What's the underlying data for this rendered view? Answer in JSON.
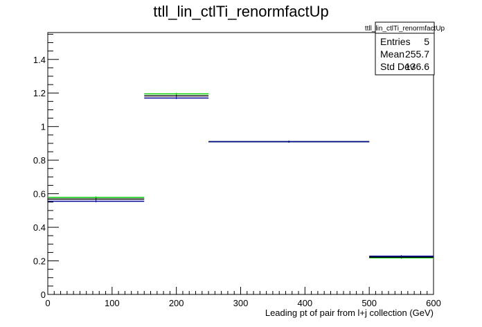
{
  "chart_data": {
    "type": "step",
    "title": "ttll_lin_ctlTi_renormfactUp",
    "xlabel": "Leading pt of pair from l+j collection (GeV)",
    "ylabel": "",
    "xlim": [
      0,
      600
    ],
    "ylim": [
      0,
      1.56
    ],
    "x_ticks": [
      0,
      100,
      200,
      300,
      400,
      500,
      600
    ],
    "y_ticks": [
      0,
      0.2,
      0.4,
      0.6,
      0.8,
      1,
      1.2,
      1.4
    ],
    "x_tick_labels": [
      "0",
      "100",
      "200",
      "300",
      "400",
      "500",
      "600"
    ],
    "y_tick_labels": [
      "0",
      "0.2",
      "0.4",
      "0.6",
      "0.8",
      "1",
      "1.2",
      "1.4"
    ],
    "bin_edges": [
      0,
      150,
      250,
      500,
      600
    ],
    "bin_centers": [
      75,
      200,
      375,
      550
    ],
    "series": [
      {
        "color": "#00cc00",
        "values": [
          0.578,
          1.195,
          0.91,
          0.218
        ]
      },
      {
        "color": "#000000",
        "values": [
          0.568,
          1.183,
          0.91,
          0.222
        ]
      },
      {
        "color": "#000099",
        "values": [
          0.555,
          1.17,
          0.91,
          0.228
        ]
      }
    ],
    "stats": {
      "title": "ttll_lin_ctlTi_renormfactUp",
      "rows": [
        {
          "label": "Entries",
          "value": "5"
        },
        {
          "label": "Mean",
          "value": "255.7"
        },
        {
          "label": "Std Dev",
          "value": "136.6"
        }
      ]
    }
  }
}
